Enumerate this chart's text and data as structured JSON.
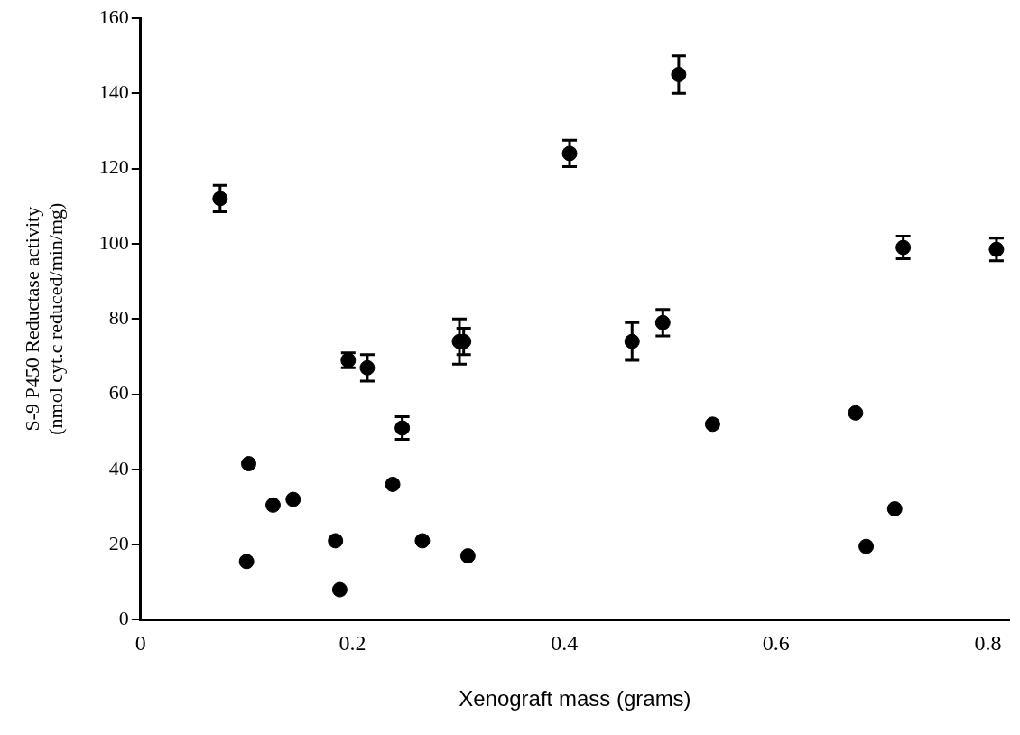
{
  "chart_data": {
    "type": "scatter",
    "xlabel": "Xenograft mass (grams)",
    "ylabel": "S-9 P450 Reductase activity\n(nmol cyt.c reduced/min/mg)",
    "x": [
      0.075,
      0.196,
      0.214,
      0.247,
      0.301,
      0.305,
      0.405,
      0.508,
      0.464,
      0.493,
      0.72,
      0.808,
      0.102,
      0.1,
      0.125,
      0.144,
      0.184,
      0.188,
      0.238,
      0.266,
      0.309,
      0.54,
      0.675,
      0.685,
      0.712
    ],
    "values": [
      112,
      69,
      67,
      51,
      74,
      74,
      124,
      145,
      74,
      79,
      99,
      98.5,
      41.5,
      15.5,
      30.5,
      32,
      21,
      8,
      36,
      21,
      17,
      52,
      55,
      19.5,
      29.5
    ],
    "errors": [
      3.5,
      2,
      3.5,
      3,
      6,
      3.5,
      3.5,
      5,
      5,
      3.5,
      3,
      3,
      null,
      null,
      null,
      null,
      null,
      null,
      null,
      null,
      null,
      null,
      null,
      null,
      null
    ],
    "color": "#000000",
    "marker": "circle",
    "xlim": [
      0,
      0.82
    ],
    "xticks": [
      0,
      0.2,
      0.4,
      0.6,
      0.8
    ],
    "ylim": [
      0,
      160
    ],
    "yticks": [
      0,
      20,
      40,
      60,
      80,
      100,
      120,
      140,
      160
    ],
    "grid": false,
    "legend": false
  }
}
